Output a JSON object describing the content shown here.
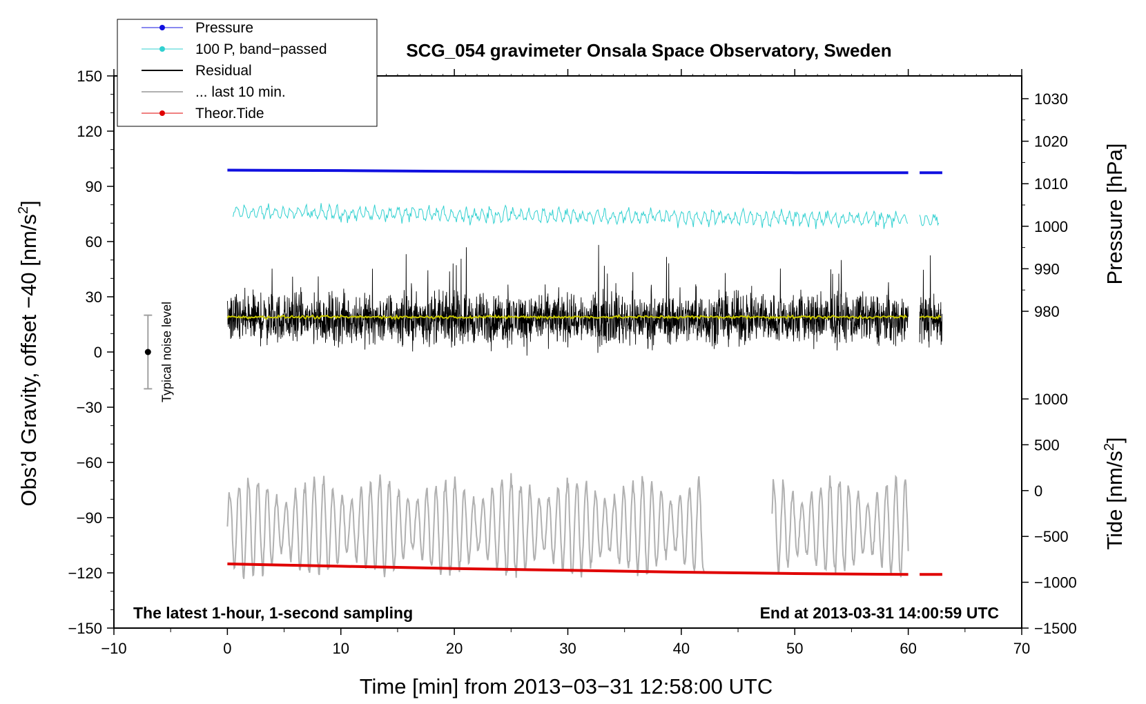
{
  "chart_data": {
    "type": "line",
    "title": "SCG_054 gravimeter Onsala Space Observatory, Sweden",
    "xlabel": "Time [min] from 2013−03−31 12:58:00 UTC",
    "ylabel_left": "Obs’d Gravity, offset −40 [nm/s²]",
    "ylabel_pressure": "Pressure [hPa]",
    "ylabel_tide": "Tide [nm/s²]",
    "xlim": [
      -10,
      70
    ],
    "ylim": [
      -150,
      150
    ],
    "x_ticks": [
      "−10",
      "0",
      "10",
      "20",
      "30",
      "40",
      "50",
      "60",
      "70"
    ],
    "y_ticks": [
      "150",
      "120",
      "90",
      "60",
      "30",
      "0",
      "−30",
      "−60",
      "−90",
      "−120",
      "−150"
    ],
    "pressure_ticks": [
      "1030",
      "1020",
      "1010",
      "1000",
      "990",
      "980"
    ],
    "tide_ticks": [
      "1000",
      "500",
      "0",
      "−500",
      "−1000",
      "−1500"
    ],
    "annotation_left": "The latest 1-hour, 1-second sampling",
    "annotation_right": "End at 2013-03-31 14:00:59 UTC",
    "noise_label": "Typical noise level",
    "noise_bar": {
      "x": -7,
      "center": 0,
      "half_range": 20
    },
    "legend": [
      {
        "label": "Pressure",
        "color": "#1010e0",
        "style": "line-dot"
      },
      {
        "label": "100 P, band−passed",
        "color": "#30d0d0",
        "style": "line-dot"
      },
      {
        "label": "Residual",
        "color": "#000000",
        "style": "line"
      },
      {
        "label": "... last 10 min.",
        "color": "#b0b0b0",
        "style": "line"
      },
      {
        "label": "Theor.Tide",
        "color": "#e00000",
        "style": "line-dot"
      }
    ],
    "series": [
      {
        "name": "Pressure",
        "units": "hPa",
        "color": "#1010e0",
        "segments": [
          {
            "x": [
              0,
              10,
              20,
              30,
              40,
              50,
              60
            ],
            "y": [
              1013.2,
              1013.1,
              1012.9,
              1012.8,
              1012.7,
              1012.6,
              1012.6
            ]
          },
          {
            "x": [
              61,
              63
            ],
            "y": [
              1012.6,
              1012.6
            ]
          }
        ]
      },
      {
        "name": "100 P, band-passed",
        "units": "nm/s²",
        "color": "#30d0d0",
        "base_start": 76,
        "base_end": 72,
        "amplitude": 5,
        "segments": [
          [
            0.5,
            60
          ],
          [
            61,
            62.7
          ]
        ]
      },
      {
        "name": "Residual",
        "units": "nm/s²",
        "color": "#000000",
        "center": 18,
        "amplitude": 22,
        "segments": [
          [
            0,
            60
          ],
          [
            61,
            63
          ]
        ]
      },
      {
        "name": "Residual smoothed",
        "units": "nm/s²",
        "color": "#c8c800",
        "center": 19,
        "segments": [
          [
            0,
            60
          ],
          [
            61,
            63
          ]
        ]
      },
      {
        "name": "... last 10 min.",
        "units": "nm/s²",
        "color": "#b0b0b0",
        "center": -95,
        "amplitude": 22,
        "segments": [
          [
            0,
            42
          ],
          [
            48,
            60
          ]
        ]
      },
      {
        "name": "Theor.Tide",
        "units": "nm/s²",
        "color": "#e00000",
        "segments": [
          {
            "x": [
              0,
              10,
              20,
              30,
              40,
              50,
              60
            ],
            "y": [
              -800,
              -825,
              -850,
              -870,
              -890,
              -905,
              -915
            ]
          },
          {
            "x": [
              61,
              63
            ],
            "y": [
              -915,
              -915
            ]
          }
        ]
      }
    ]
  }
}
